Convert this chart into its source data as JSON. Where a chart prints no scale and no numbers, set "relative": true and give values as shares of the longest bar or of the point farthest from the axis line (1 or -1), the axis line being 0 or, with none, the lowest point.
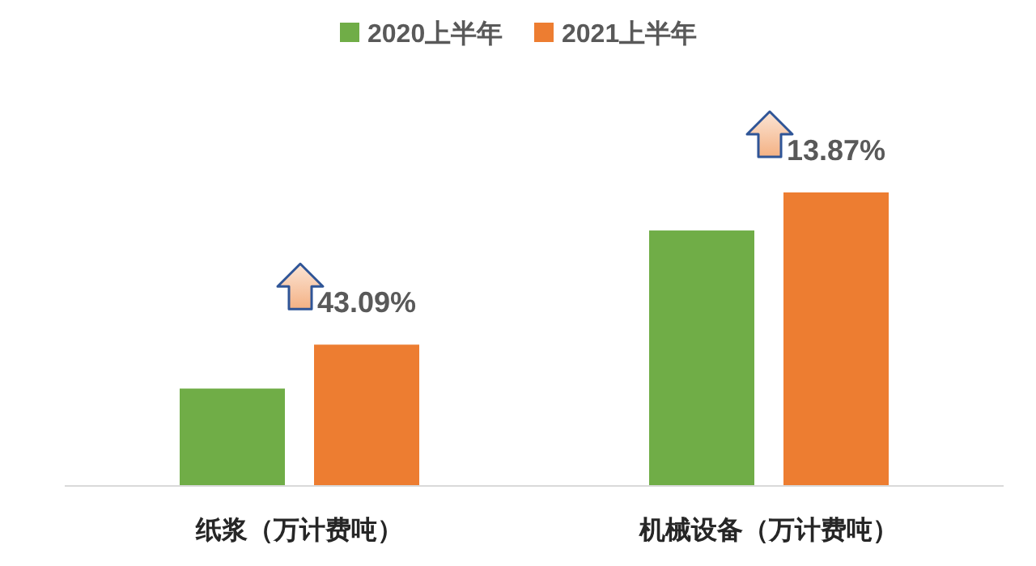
{
  "chart_data": {
    "type": "bar",
    "relative": true,
    "categories": [
      "纸浆（万计费吨）",
      "机械设备（万计费吨）"
    ],
    "series": [
      {
        "name": "2020上半年",
        "color": "#70ad47",
        "values": [
          0.33,
          0.87
        ]
      },
      {
        "name": "2021上半年",
        "color": "#ed7d31",
        "values": [
          0.48,
          1
        ]
      }
    ],
    "annotations": [
      "43.09%",
      "13.87%"
    ],
    "legend": "top",
    "grid": false
  }
}
